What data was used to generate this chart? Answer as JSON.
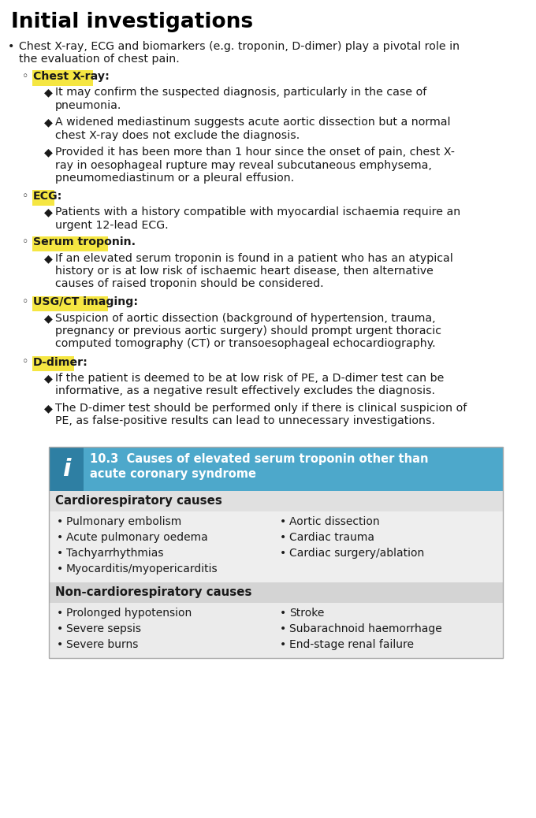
{
  "title": "Initial investigations",
  "bg": "#ffffff",
  "title_color": "#000000",
  "title_fontsize": 19,
  "body_fontsize": 10.2,
  "highlight_color": "#f5e642",
  "text_color": "#1a1a1a",
  "content": [
    {
      "level": 1,
      "text": "Chest X-ray, ECG and biomarkers (e.g. troponin, D-dimer) play a pivotal role in\nthe evaluation of chest pain.",
      "highlight": false
    },
    {
      "level": 2,
      "text": "Chest X-ray:",
      "highlight": true
    },
    {
      "level": 3,
      "text": "It may confirm the suspected diagnosis, particularly in the case of\npneumonia.",
      "highlight": false
    },
    {
      "level": 3,
      "text": "A widened mediastinum suggests acute aortic dissection but a normal\nchest X-ray does not exclude the diagnosis.",
      "highlight": false
    },
    {
      "level": 3,
      "text": "Provided it has been more than 1 hour since the onset of pain, chest X-\nray in oesophageal rupture may reveal subcutaneous emphysema,\npneumomediastinum or a pleural effusion.",
      "highlight": false
    },
    {
      "level": 2,
      "text": "ECG:",
      "highlight": true
    },
    {
      "level": 3,
      "text": "Patients with a history compatible with myocardial ischaemia require an\nurgent 12-lead ECG.",
      "highlight": false
    },
    {
      "level": 2,
      "text": "Serum troponin.",
      "highlight": true
    },
    {
      "level": 3,
      "text": "If an elevated serum troponin is found in a patient who has an atypical\nhistory or is at low risk of ischaemic heart disease, then alternative\ncauses of raised troponin should be considered.",
      "highlight": false
    },
    {
      "level": 2,
      "text": "USG/CT imaging:",
      "highlight": true
    },
    {
      "level": 3,
      "text": "Suspicion of aortic dissection (background of hypertension, trauma,\npregnancy or previous aortic surgery) should prompt urgent thoracic\ncomputed tomography (CT) or transoesophageal echocardiography.",
      "highlight": false
    },
    {
      "level": 2,
      "text": "D-dimer:",
      "highlight": true
    },
    {
      "level": 3,
      "text": "If the patient is deemed to be at low risk of PE, a D-dimer test can be\ninformative, as a negative result effectively excludes the diagnosis.",
      "highlight": false
    },
    {
      "level": 3,
      "text": "The D-dimer test should be performed only if there is clinical suspicion of\nPE, as false-positive results can lead to unnecessary investigations.",
      "highlight": false
    }
  ],
  "info_box": {
    "header_bg": "#4da8cb",
    "header_text_color": "#ffffff",
    "header_number": "10.3",
    "header_title1": "10.3  Causes of elevated serum troponin other than",
    "header_title2": "acute coronary syndrome",
    "icon_bg": "#2e7fa3",
    "icon_text": "i",
    "section1_title": "Cardiorespiratory causes",
    "section1_bg": "#e0e0e0",
    "section1_content_bg": "#eeeeee",
    "section1_left": [
      "Pulmonary embolism",
      "Acute pulmonary oedema",
      "Tachyarrhythmias",
      "Myocarditis/myopericarditis"
    ],
    "section1_right": [
      "Aortic dissection",
      "Cardiac trauma",
      "Cardiac surgery/ablation"
    ],
    "section2_title": "Non-cardiorespiratory causes",
    "section2_bg": "#d4d4d4",
    "section2_content_bg": "#ebebeb",
    "section2_left": [
      "Prolonged hypotension",
      "Severe sepsis",
      "Severe burns"
    ],
    "section2_right": [
      "Stroke",
      "Subarachnoid haemorrhage",
      "End-stage renal failure"
    ],
    "box_border_color": "#aaaaaa",
    "text_color": "#1a1a1a"
  }
}
